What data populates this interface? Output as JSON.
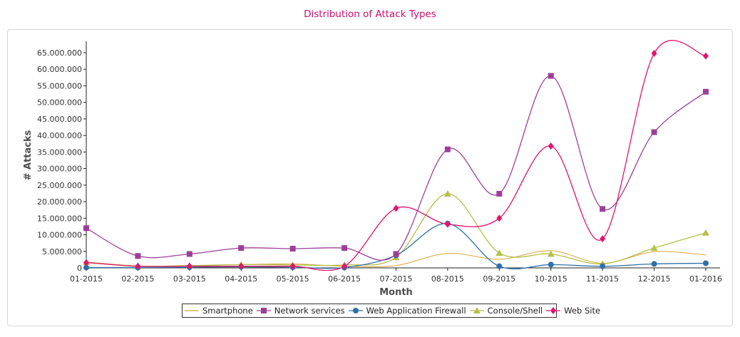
{
  "chart_data": {
    "type": "line",
    "title": "Distribution of Attack Types",
    "xlabel": "Month",
    "ylabel": "# Attacks",
    "categories": [
      "01-2015",
      "02-2015",
      "03-2015",
      "04-2015",
      "05-2015",
      "06-2015",
      "07-2015",
      "08-2015",
      "09-2015",
      "10-2015",
      "11-2015",
      "12-2015",
      "01-2016"
    ],
    "yticks": [
      "0",
      "5.000.000",
      "10.000.000",
      "15.000.000",
      "20.000.000",
      "25.000.000",
      "30.000.000",
      "35.000.000",
      "40.000.000",
      "45.000.000",
      "50.000.000",
      "55.000.000",
      "60.000.000",
      "65.000.000"
    ],
    "ylim": [
      0,
      68000000
    ],
    "grid": false,
    "legend_position": "bottom",
    "series": [
      {
        "name": "Smartphone",
        "color": "#d9a33a",
        "marker": "none",
        "values": [
          1800000,
          600000,
          600000,
          1000000,
          1200000,
          500000,
          700000,
          4400000,
          2600000,
          5200000,
          1400000,
          4900000,
          3900000
        ]
      },
      {
        "name": "Network services",
        "color": "#9c3f98",
        "marker": "square",
        "values": [
          12000000,
          3600000,
          4200000,
          6000000,
          5800000,
          6000000,
          4200000,
          35800000,
          22400000,
          58000000,
          17800000,
          41000000,
          53200000
        ]
      },
      {
        "name": "Web Application Firewall",
        "color": "#2f70a8",
        "marker": "circle",
        "values": [
          100000,
          100000,
          200000,
          300000,
          200000,
          100000,
          3800000,
          13400000,
          500000,
          1000000,
          500000,
          1200000,
          1400000
        ]
      },
      {
        "name": "Console/Shell",
        "color": "#b4c048",
        "marker": "triangle",
        "values": [
          1700000,
          500000,
          700000,
          1000000,
          900000,
          900000,
          3200000,
          22400000,
          4500000,
          4200000,
          1200000,
          6000000,
          10600000
        ]
      },
      {
        "name": "Web Site",
        "color": "#e0156b",
        "marker": "diamond",
        "values": [
          1600000,
          500000,
          500000,
          500000,
          500000,
          500000,
          18000000,
          13200000,
          15000000,
          36800000,
          8800000,
          64800000,
          64000000
        ]
      }
    ]
  }
}
